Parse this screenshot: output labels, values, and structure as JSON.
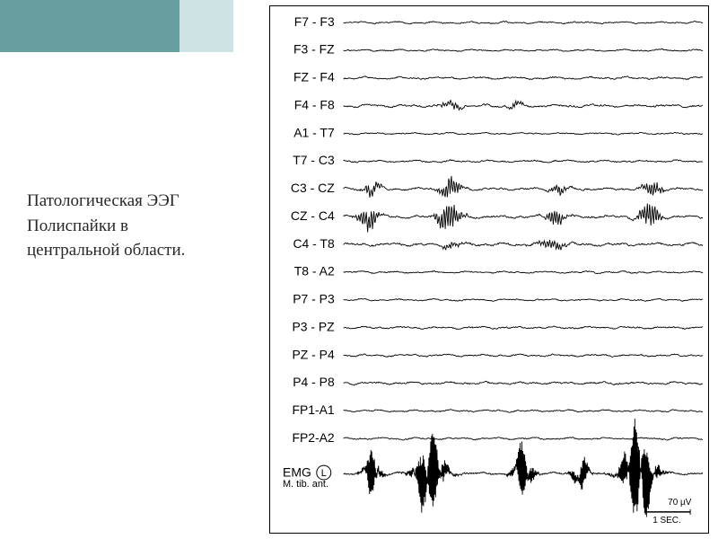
{
  "caption": {
    "line1": "Патологическая ЭЭГ",
    "line2": "Полиспайки в",
    "line3": "центральной области."
  },
  "header": {
    "left_color": "#679e9e",
    "right_color": "#cde2e2"
  },
  "eeg": {
    "panel_border": "#000000",
    "background": "#ffffff",
    "trace_color": "#000000",
    "trace_width": 0.9,
    "label_fontsize": 14,
    "scale": {
      "time_label": "1 SEC.",
      "amp_label": "70 µV",
      "bar_color": "#000000"
    },
    "emg": {
      "label": "EMG",
      "side": "L",
      "muscle": "M. tib. ant."
    },
    "channels": [
      {
        "label": "F7 - F3",
        "base_amp": 2.2,
        "bursts": []
      },
      {
        "label": "F3 - FZ",
        "base_amp": 2.0,
        "bursts": []
      },
      {
        "label": "FZ - F4",
        "base_amp": 2.6,
        "bursts": []
      },
      {
        "label": "F4 - F8",
        "base_amp": 3.0,
        "bursts": [
          {
            "t": 0.3,
            "w": 0.06,
            "a": 6
          },
          {
            "t": 0.48,
            "w": 0.05,
            "a": 5
          }
        ]
      },
      {
        "label": "A1 - T7",
        "base_amp": 2.0,
        "bursts": []
      },
      {
        "label": "T7 - C3",
        "base_amp": 2.4,
        "bursts": []
      },
      {
        "label": "C3 - CZ",
        "base_amp": 2.8,
        "bursts": [
          {
            "t": 0.08,
            "w": 0.05,
            "a": 9
          },
          {
            "t": 0.3,
            "w": 0.07,
            "a": 11
          },
          {
            "t": 0.6,
            "w": 0.05,
            "a": 8
          },
          {
            "t": 0.86,
            "w": 0.06,
            "a": 9
          }
        ]
      },
      {
        "label": "CZ - C4",
        "base_amp": 3.0,
        "bursts": [
          {
            "t": 0.07,
            "w": 0.06,
            "a": 12
          },
          {
            "t": 0.29,
            "w": 0.08,
            "a": 14
          },
          {
            "t": 0.59,
            "w": 0.06,
            "a": 10
          },
          {
            "t": 0.85,
            "w": 0.07,
            "a": 12
          }
        ]
      },
      {
        "label": "C4 - T8",
        "base_amp": 3.2,
        "bursts": [
          {
            "t": 0.3,
            "w": 0.05,
            "a": 6
          },
          {
            "t": 0.58,
            "w": 0.08,
            "a": 7
          }
        ]
      },
      {
        "label": "T8 - A2",
        "base_amp": 2.2,
        "bursts": []
      },
      {
        "label": "P7 - P3",
        "base_amp": 2.0,
        "bursts": []
      },
      {
        "label": "P3 - PZ",
        "base_amp": 2.4,
        "bursts": []
      },
      {
        "label": "PZ - P4",
        "base_amp": 2.4,
        "bursts": []
      },
      {
        "label": "P4 - P8",
        "base_amp": 2.8,
        "bursts": []
      },
      {
        "label": "FP1-A1",
        "base_amp": 2.2,
        "bursts": []
      },
      {
        "label": "FP2-A2",
        "base_amp": 2.2,
        "bursts": []
      }
    ],
    "emg_trace": {
      "base_amp": 2.5,
      "bursts": [
        {
          "t": 0.08,
          "w": 0.05,
          "a": 18
        },
        {
          "t": 0.24,
          "w": 0.09,
          "a": 25
        },
        {
          "t": 0.5,
          "w": 0.06,
          "a": 20
        },
        {
          "t": 0.66,
          "w": 0.05,
          "a": 15
        },
        {
          "t": 0.82,
          "w": 0.1,
          "a": 28
        }
      ]
    }
  }
}
